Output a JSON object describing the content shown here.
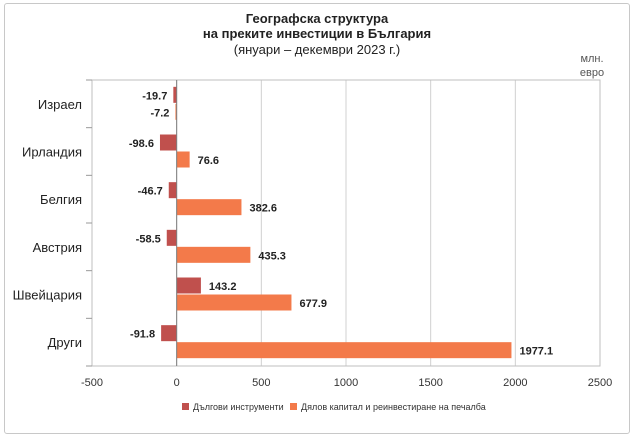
{
  "chart_data": {
    "type": "bar",
    "orientation": "horizontal",
    "title": "Географска структура",
    "title_line2": "на преките инвестиции в България",
    "subtitle": "(януари – декември 2023 г.)",
    "unit_line1": "млн.",
    "unit_line2": "евро",
    "categories": [
      "Израел",
      "Ирландия",
      "Белгия",
      "Австрия",
      "Швейцария",
      "Други"
    ],
    "series": [
      {
        "name": "Дългови инструменти",
        "color": "#c0504d",
        "values": [
          -19.7,
          -98.6,
          -46.7,
          -58.5,
          143.2,
          -91.8
        ],
        "labels": [
          "-19.7",
          "-98.6",
          "-46.7",
          "-58.5",
          "143.2",
          "-91.8"
        ]
      },
      {
        "name": "Дялов капитал и реинвестиране на печалба",
        "color": "#f37a4a",
        "values": [
          -7.2,
          76.6,
          382.6,
          435.3,
          677.9,
          1977.1
        ],
        "labels": [
          "-7.2",
          "76.6",
          "382.6",
          "435.3",
          "677.9",
          "1977.1"
        ]
      }
    ],
    "xlim": [
      -500,
      2500
    ],
    "xticks": [
      -500,
      0,
      500,
      1000,
      1500,
      2000,
      2500
    ],
    "xtick_labels": [
      "-500",
      "0",
      "500",
      "1000",
      "1500",
      "2000",
      "2500"
    ],
    "grid": true,
    "legend": "bottom"
  }
}
